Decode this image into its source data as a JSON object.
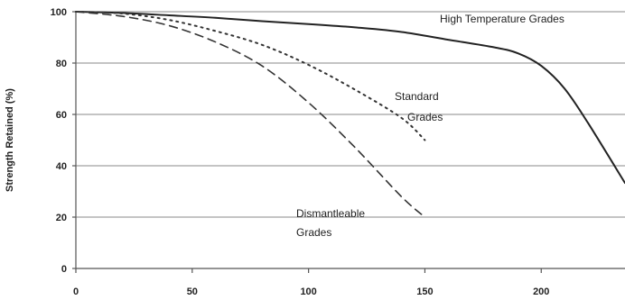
{
  "chart_data": {
    "type": "line",
    "xlabel": "",
    "ylabel": "Strength Retained (%)",
    "xlim": [
      0,
      236
    ],
    "ylim": [
      0,
      100
    ],
    "x_ticks": [
      0,
      50,
      100,
      150,
      200
    ],
    "y_ticks": [
      0,
      20,
      40,
      60,
      80,
      100
    ],
    "grid": "horizontal",
    "series": [
      {
        "key": "high",
        "style": "solid",
        "color": "#222222",
        "x": [
          0,
          20,
          40,
          60,
          80,
          100,
          120,
          140,
          160,
          180,
          190,
          200,
          210,
          220,
          236
        ],
        "y": [
          100,
          99.5,
          98.6,
          97.6,
          96.3,
          95.2,
          93.9,
          92.1,
          89.1,
          86.1,
          83.8,
          78.9,
          70.1,
          56.8,
          33.3
        ]
      },
      {
        "key": "standard",
        "style": "dotted",
        "color": "#333333",
        "x": [
          0,
          20,
          40,
          60,
          80,
          100,
          120,
          140,
          150
        ],
        "y": [
          100,
          99.3,
          96.8,
          92.5,
          87.1,
          79.3,
          69.6,
          58.6,
          50
        ]
      },
      {
        "key": "dismantleable",
        "style": "dashed",
        "color": "#333333",
        "x": [
          0,
          20,
          40,
          60,
          80,
          100,
          120,
          140,
          150
        ],
        "y": [
          100,
          98.2,
          94.6,
          88.2,
          78.9,
          64.6,
          47.1,
          27.9,
          20
        ]
      }
    ],
    "annotations": [
      {
        "key": "high",
        "lines": [
          "High Temperature Grades"
        ]
      },
      {
        "key": "standard",
        "lines": [
          "Standard",
          "Grades"
        ]
      },
      {
        "key": "dismantleable",
        "lines": [
          "Dismantleable",
          "Grades"
        ]
      }
    ]
  }
}
